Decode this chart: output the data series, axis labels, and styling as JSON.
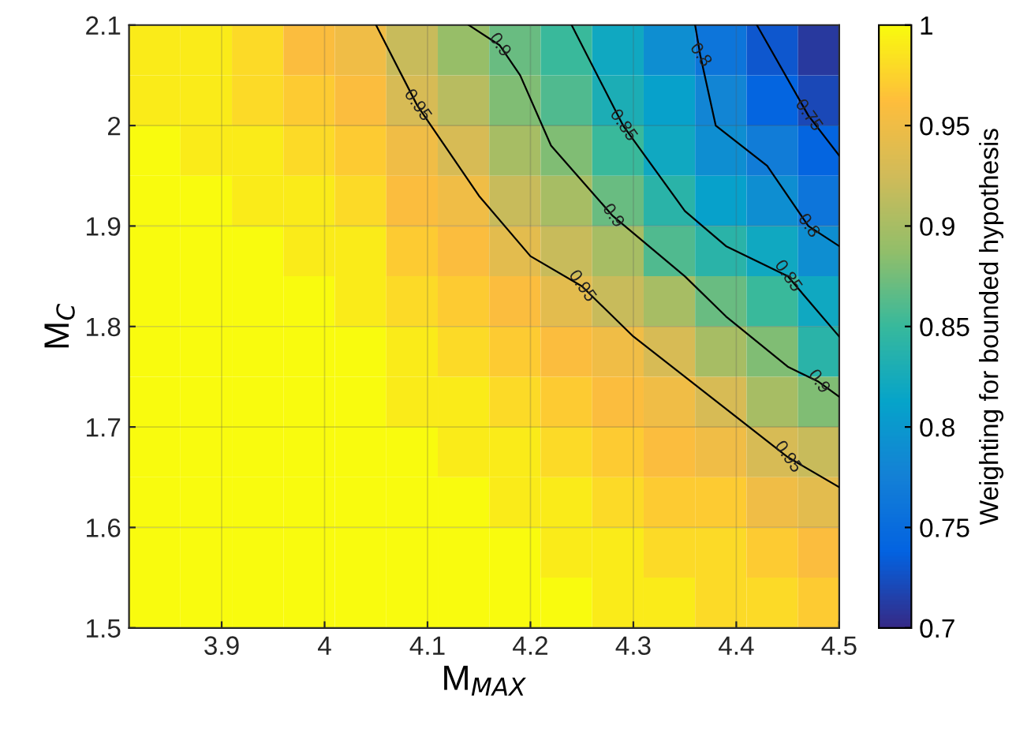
{
  "chart_data": {
    "type": "heatmap",
    "xlabel": "M$_{MAX}$",
    "ylabel": "M$_{C}$",
    "clabel": "Weighting for bounded hypothesis",
    "x": [
      3.835,
      3.885,
      3.935,
      3.985,
      4.035,
      4.085,
      4.135,
      4.185,
      4.235,
      4.285,
      4.335,
      4.385,
      4.435,
      4.485
    ],
    "y": [
      2.075,
      2.025,
      1.975,
      1.925,
      1.875,
      1.825,
      1.775,
      1.725,
      1.675,
      1.625,
      1.575,
      1.525
    ],
    "cells": [
      [
        0.99,
        0.99,
        0.98,
        0.96,
        0.95,
        0.92,
        0.89,
        0.87,
        0.85,
        0.82,
        0.79,
        0.76,
        0.73,
        0.71
      ],
      [
        0.99,
        0.99,
        0.98,
        0.97,
        0.96,
        0.93,
        0.91,
        0.88,
        0.86,
        0.83,
        0.81,
        0.78,
        0.74,
        0.72
      ],
      [
        1,
        0.99,
        0.99,
        0.98,
        0.97,
        0.95,
        0.93,
        0.9,
        0.88,
        0.85,
        0.82,
        0.79,
        0.77,
        0.74
      ],
      [
        1,
        1,
        0.99,
        0.99,
        0.98,
        0.96,
        0.95,
        0.92,
        0.9,
        0.87,
        0.84,
        0.81,
        0.79,
        0.76
      ],
      [
        1,
        1,
        1,
        0.99,
        0.99,
        0.97,
        0.96,
        0.94,
        0.92,
        0.9,
        0.86,
        0.84,
        0.82,
        0.79
      ],
      [
        1,
        1,
        1,
        1,
        0.99,
        0.98,
        0.97,
        0.96,
        0.94,
        0.92,
        0.9,
        0.87,
        0.85,
        0.82
      ],
      [
        1,
        1,
        1,
        1,
        1,
        0.99,
        0.98,
        0.97,
        0.96,
        0.95,
        0.93,
        0.9,
        0.88,
        0.84
      ],
      [
        1,
        1,
        1,
        1,
        1,
        0.99,
        0.99,
        0.98,
        0.97,
        0.96,
        0.95,
        0.93,
        0.9,
        0.88
      ],
      [
        1,
        1,
        1,
        1,
        1,
        1,
        0.99,
        0.99,
        0.98,
        0.97,
        0.96,
        0.95,
        0.93,
        0.92
      ],
      [
        1,
        1,
        1,
        1,
        1,
        1,
        1,
        0.99,
        0.99,
        0.98,
        0.97,
        0.97,
        0.95,
        0.94
      ],
      [
        1,
        1,
        1,
        1,
        1,
        1,
        1,
        1,
        0.99,
        0.99,
        0.98,
        0.98,
        0.97,
        0.96
      ],
      [
        1,
        1,
        1,
        1,
        1,
        1,
        1,
        1,
        1,
        0.99,
        0.99,
        0.98,
        0.98,
        0.97
      ]
    ],
    "xlim": [
      3.81,
      4.5
    ],
    "ylim": [
      1.5,
      2.1
    ],
    "xticks": [
      3.9,
      4,
      4.1,
      4.2,
      4.3,
      4.4,
      4.5
    ],
    "yticks": [
      1.5,
      1.6,
      1.7,
      1.8,
      1.9,
      2,
      2.1
    ],
    "clim": [
      0.7,
      1
    ],
    "cticks": [
      0.7,
      0.75,
      0.8,
      0.85,
      0.9,
      0.95,
      1
    ],
    "grid": true,
    "series": [
      {
        "type": "line",
        "color": "#000000",
        "x": [
          4.05,
          4.09,
          4.15,
          4.2,
          4.25,
          4.3,
          4.35,
          4.4,
          4.45,
          4.5
        ],
        "values": [
          2.1,
          2.02,
          1.93,
          1.87,
          1.84,
          1.79,
          1.75,
          1.71,
          1.67,
          1.64
        ]
      },
      {
        "type": "line",
        "color": "#000000",
        "x": [
          4.14,
          4.17,
          4.19,
          4.22,
          4.28,
          4.35,
          4.39,
          4.45,
          4.48,
          4.5
        ],
        "values": [
          2.1,
          2.08,
          2.05,
          1.98,
          1.91,
          1.85,
          1.81,
          1.76,
          1.745,
          1.73
        ]
      },
      {
        "type": "line",
        "color": "#000000",
        "x": [
          4.24,
          4.29,
          4.35,
          4.39,
          4.45,
          4.5
        ],
        "values": [
          2.1,
          2.0,
          1.915,
          1.88,
          1.85,
          1.79
        ]
      },
      {
        "type": "line",
        "color": "#000000",
        "x": [
          4.36,
          4.365,
          4.38,
          4.43,
          4.47,
          4.5
        ],
        "values": [
          2.1,
          2.07,
          2.0,
          1.96,
          1.9,
          1.88
        ]
      },
      {
        "type": "line",
        "color": "#000000",
        "x": [
          4.42,
          4.47,
          4.5
        ],
        "values": [
          2.1,
          2.01,
          1.97
        ]
      }
    ],
    "annotations": [
      {
        "text": "0.95",
        "x": 4.09,
        "y": 2.02
      },
      {
        "text": "0.9",
        "x": 4.17,
        "y": 2.08
      },
      {
        "text": "0.95",
        "x": 4.25,
        "y": 1.84
      },
      {
        "text": "0.9",
        "x": 4.28,
        "y": 1.91
      },
      {
        "text": "0.85",
        "x": 4.29,
        "y": 2.0
      },
      {
        "text": "0.8",
        "x": 4.365,
        "y": 2.07
      },
      {
        "text": "0.95",
        "x": 4.45,
        "y": 1.67
      },
      {
        "text": "0.9",
        "x": 4.48,
        "y": 1.745
      },
      {
        "text": "0.85",
        "x": 4.45,
        "y": 1.85
      },
      {
        "text": "0.8",
        "x": 4.47,
        "y": 1.9
      },
      {
        "text": "0.75",
        "x": 4.47,
        "y": 2.01
      }
    ]
  }
}
